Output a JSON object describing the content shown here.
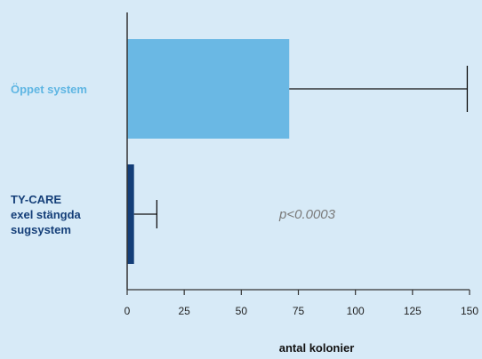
{
  "chart_data": {
    "type": "bar",
    "orientation": "horizontal",
    "categories": [
      "Öppet system",
      "TY-CARE\nexel stängda\nsugsystem"
    ],
    "values": [
      71,
      3
    ],
    "error_upper": [
      149,
      13
    ],
    "category_colors": [
      "#6ab8e4",
      "#143e78"
    ],
    "label_colors": [
      "#5fb6e3",
      "#143e78"
    ],
    "xlabel": "antal kolonier",
    "xlim": [
      0,
      150
    ],
    "xticks": [
      0,
      25,
      50,
      75,
      100,
      125,
      150
    ],
    "annotation": "p<0.0003",
    "grid": false
  },
  "colors": {
    "background": "#d7eaf7",
    "axis": "#333333",
    "annotation": "#7a7a7a"
  }
}
